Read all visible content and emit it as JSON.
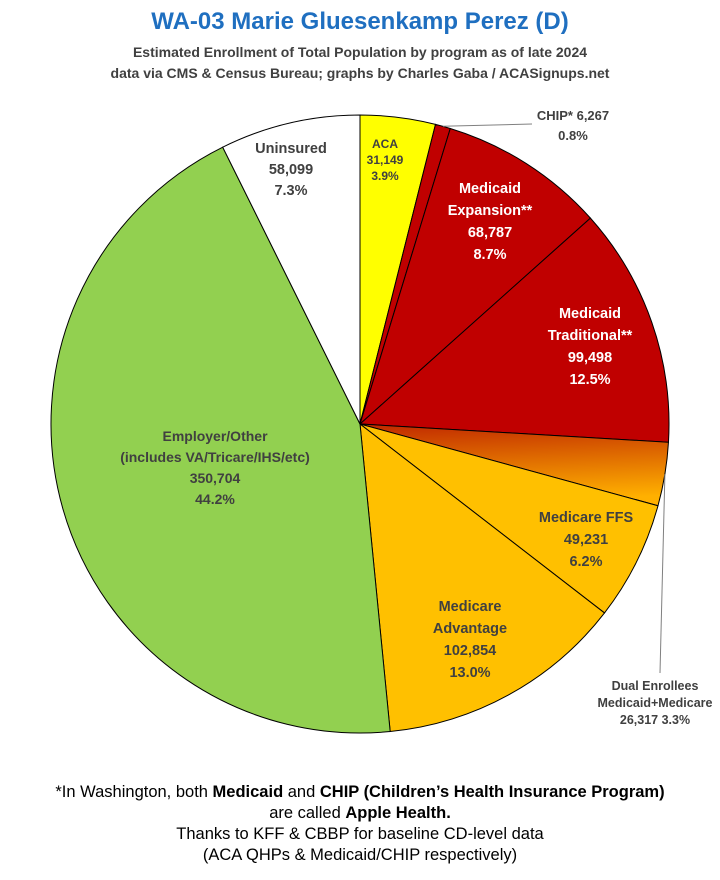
{
  "title": "WA-03 Marie Gluesenkamp Perez (D)",
  "subtitle_1": "Estimated Enrollment of Total Population by program as of late 2024",
  "subtitle_2": "data via CMS & Census Bureau; graphs by Charles Gaba / ACASignups.net",
  "chart_data": {
    "type": "pie",
    "slices": [
      {
        "label_lines": [
          "ACA"
        ],
        "value": 31149,
        "value_text": "31,149",
        "pct_text": "3.9%",
        "color": "#ffff00",
        "text_color": "#404040"
      },
      {
        "label_lines": [
          "CHIP*"
        ],
        "value": 6267,
        "value_text": "6,267",
        "pct_text": "0.8%",
        "color": "#c00000",
        "text_color": "#404040"
      },
      {
        "label_lines": [
          "Medicaid",
          "Expansion**"
        ],
        "value": 68787,
        "value_text": "68,787",
        "pct_text": "8.7%",
        "color": "#c00000",
        "text_color": "#ffffff"
      },
      {
        "label_lines": [
          "Medicaid",
          "Traditional**"
        ],
        "value": 99498,
        "value_text": "99,498",
        "pct_text": "12.5%",
        "color": "#c00000",
        "text_color": "#ffffff"
      },
      {
        "label_lines": [
          "Dual Enrollees",
          "Medicaid+Medicare"
        ],
        "value": 26317,
        "value_text": "26,317",
        "pct_text": "3.3%",
        "color": "gradient",
        "text_color": "#404040"
      },
      {
        "label_lines": [
          "Medicare FFS"
        ],
        "value": 49231,
        "value_text": "49,231",
        "pct_text": "6.2%",
        "color": "#ffc000",
        "text_color": "#404040"
      },
      {
        "label_lines": [
          "Medicare",
          "Advantage"
        ],
        "value": 102854,
        "value_text": "102,854",
        "pct_text": "13.0%",
        "color": "#ffc000",
        "text_color": "#404040"
      },
      {
        "label_lines": [
          "Employer/Other",
          "(includes VA/Tricare/IHS/etc)"
        ],
        "value": 350704,
        "value_text": "350,704",
        "pct_text": "44.2%",
        "color": "#92d050",
        "text_color": "#404040"
      },
      {
        "label_lines": [
          "Uninsured"
        ],
        "value": 58099,
        "value_text": "58,099",
        "pct_text": "7.3%",
        "color": "#ffffff",
        "text_color": "#404040"
      }
    ]
  },
  "footnote": {
    "l1_a": "*In Washington, both ",
    "l1_b": "Medicaid",
    "l1_c": " and ",
    "l1_d": "CHIP (Children’s Health Insurance Program)",
    "l2_a": "are called ",
    "l2_b": "Apple Health.",
    "l3": "Thanks to KFF & CBBP for baseline CD-level data",
    "l4": "(ACA QHPs & Medicaid/CHIP respectively)"
  }
}
